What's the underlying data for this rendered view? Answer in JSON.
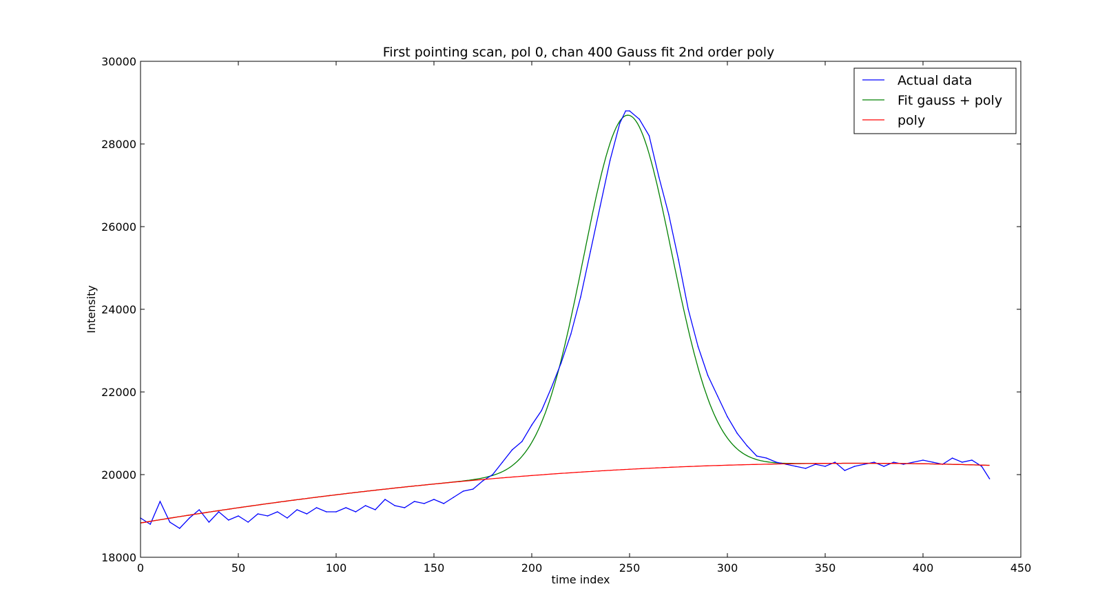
{
  "chart_data": {
    "type": "line",
    "title": "First pointing scan, pol 0, chan 400 Gauss fit 2nd order poly",
    "xlabel": "time index",
    "ylabel": "Intensity",
    "xlim": [
      0,
      450
    ],
    "ylim": [
      18000,
      30000
    ],
    "xticks": [
      0,
      50,
      100,
      150,
      200,
      250,
      300,
      350,
      400,
      450
    ],
    "yticks": [
      18000,
      20000,
      22000,
      24000,
      26000,
      28000,
      30000
    ],
    "x_tick_labels": [
      "0",
      "50",
      "100",
      "150",
      "200",
      "250",
      "300",
      "350",
      "400",
      "450"
    ],
    "y_tick_labels": [
      "18000",
      "20000",
      "22000",
      "24000",
      "26000",
      "28000",
      "30000"
    ],
    "grid": false,
    "legend_position": "top-right",
    "series": [
      {
        "name": "Actual data",
        "color": "#0000ff",
        "x": [
          0,
          5,
          10,
          15,
          20,
          25,
          30,
          35,
          40,
          45,
          50,
          55,
          60,
          65,
          70,
          75,
          80,
          85,
          90,
          95,
          100,
          105,
          110,
          115,
          120,
          125,
          130,
          135,
          140,
          145,
          150,
          155,
          160,
          165,
          170,
          175,
          180,
          185,
          190,
          195,
          200,
          205,
          210,
          215,
          220,
          225,
          230,
          235,
          240,
          245,
          248,
          250,
          255,
          260,
          265,
          270,
          275,
          280,
          285,
          290,
          295,
          300,
          305,
          310,
          315,
          320,
          325,
          330,
          335,
          340,
          345,
          350,
          355,
          360,
          365,
          370,
          375,
          380,
          385,
          390,
          395,
          400,
          405,
          410,
          415,
          420,
          425,
          430,
          434
        ],
        "values": [
          18950,
          18800,
          19350,
          18850,
          18700,
          18950,
          19150,
          18850,
          19100,
          18900,
          19000,
          18850,
          19050,
          19000,
          19100,
          18950,
          19150,
          19050,
          19200,
          19100,
          19100,
          19200,
          19100,
          19250,
          19150,
          19400,
          19250,
          19200,
          19350,
          19300,
          19400,
          19300,
          19450,
          19600,
          19650,
          19850,
          20000,
          20300,
          20600,
          20800,
          21200,
          21550,
          22100,
          22700,
          23400,
          24300,
          25400,
          26500,
          27600,
          28500,
          28800,
          28800,
          28600,
          28200,
          27200,
          26300,
          25200,
          24000,
          23100,
          22400,
          21900,
          21400,
          21000,
          20700,
          20450,
          20400,
          20300,
          20250,
          20200,
          20150,
          20250,
          20200,
          20300,
          20100,
          20200,
          20250,
          20300,
          20200,
          20300,
          20250,
          20300,
          20350,
          20300,
          20250,
          20400,
          20300,
          20350,
          20200,
          19900
        ]
      },
      {
        "name": "Fit gauss + poly",
        "color": "#008000",
        "amplitude": 8570,
        "center": 249,
        "sigma": 22.5
      },
      {
        "name": "poly",
        "color": "#ff0000",
        "coefficients": [
          18830,
          7.9,
          -0.0108
        ]
      }
    ]
  }
}
